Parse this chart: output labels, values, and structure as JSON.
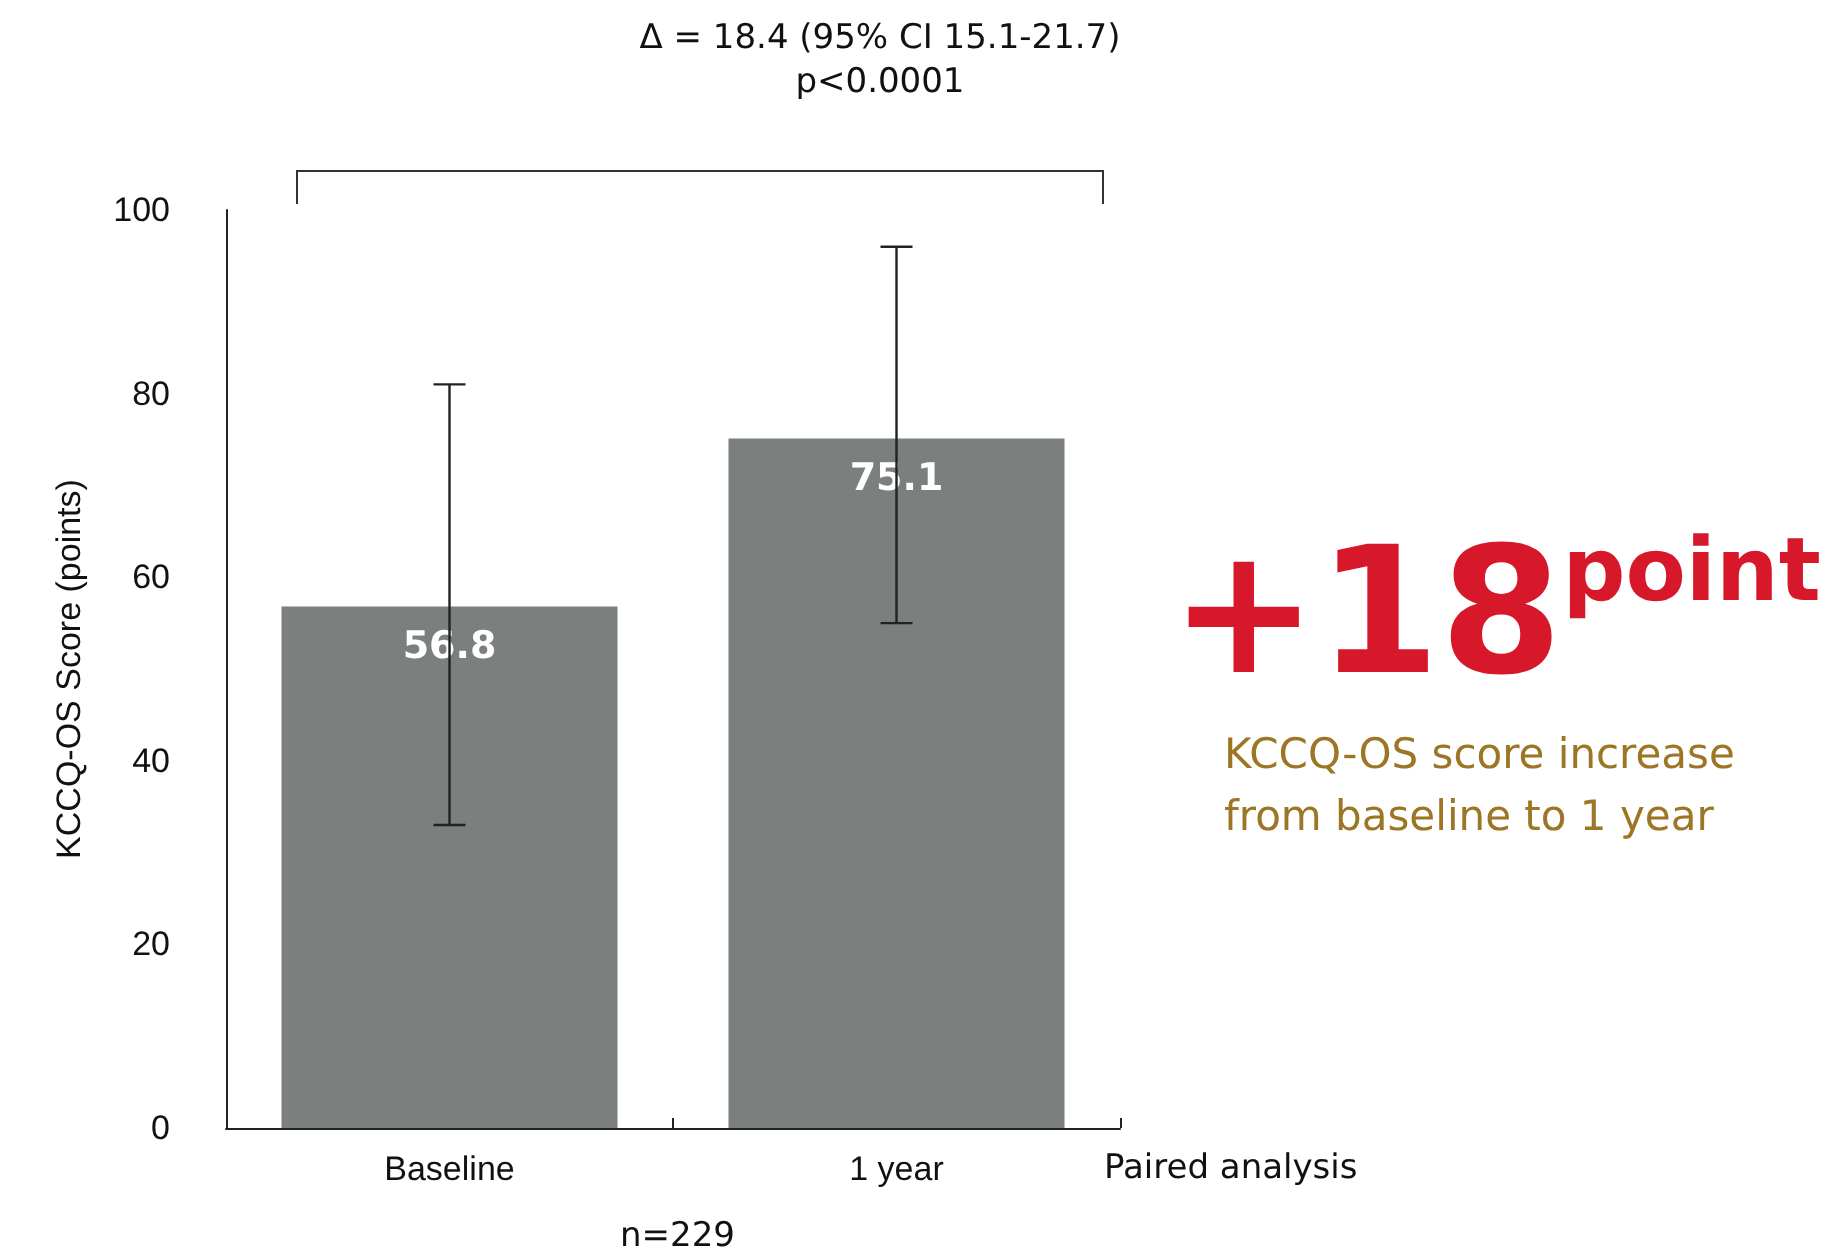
{
  "chart_data": {
    "type": "bar",
    "ylabel": "KCCQ-OS Score (points)",
    "categories": [
      "Baseline",
      "1 year"
    ],
    "series": [
      {
        "color": "#7b7f7e",
        "values": [
          56.8,
          75.1
        ],
        "value_labels": [
          "56.8",
          "75.1"
        ],
        "errors": [
          [
            33,
            81
          ],
          [
            55,
            96
          ]
        ]
      }
    ],
    "ylim": [
      0,
      100
    ],
    "yticks": [
      0,
      20,
      40,
      60,
      80,
      100
    ],
    "grid": false,
    "annotations": [
      "Δ = 18.4 (95% CI 15.1-21.7)\np<0.0001",
      "+18$^{point}$",
      "KCCQ-OS score increase\nfrom baseline to 1 year",
      "Paired analysis",
      "n=229"
    ]
  }
}
